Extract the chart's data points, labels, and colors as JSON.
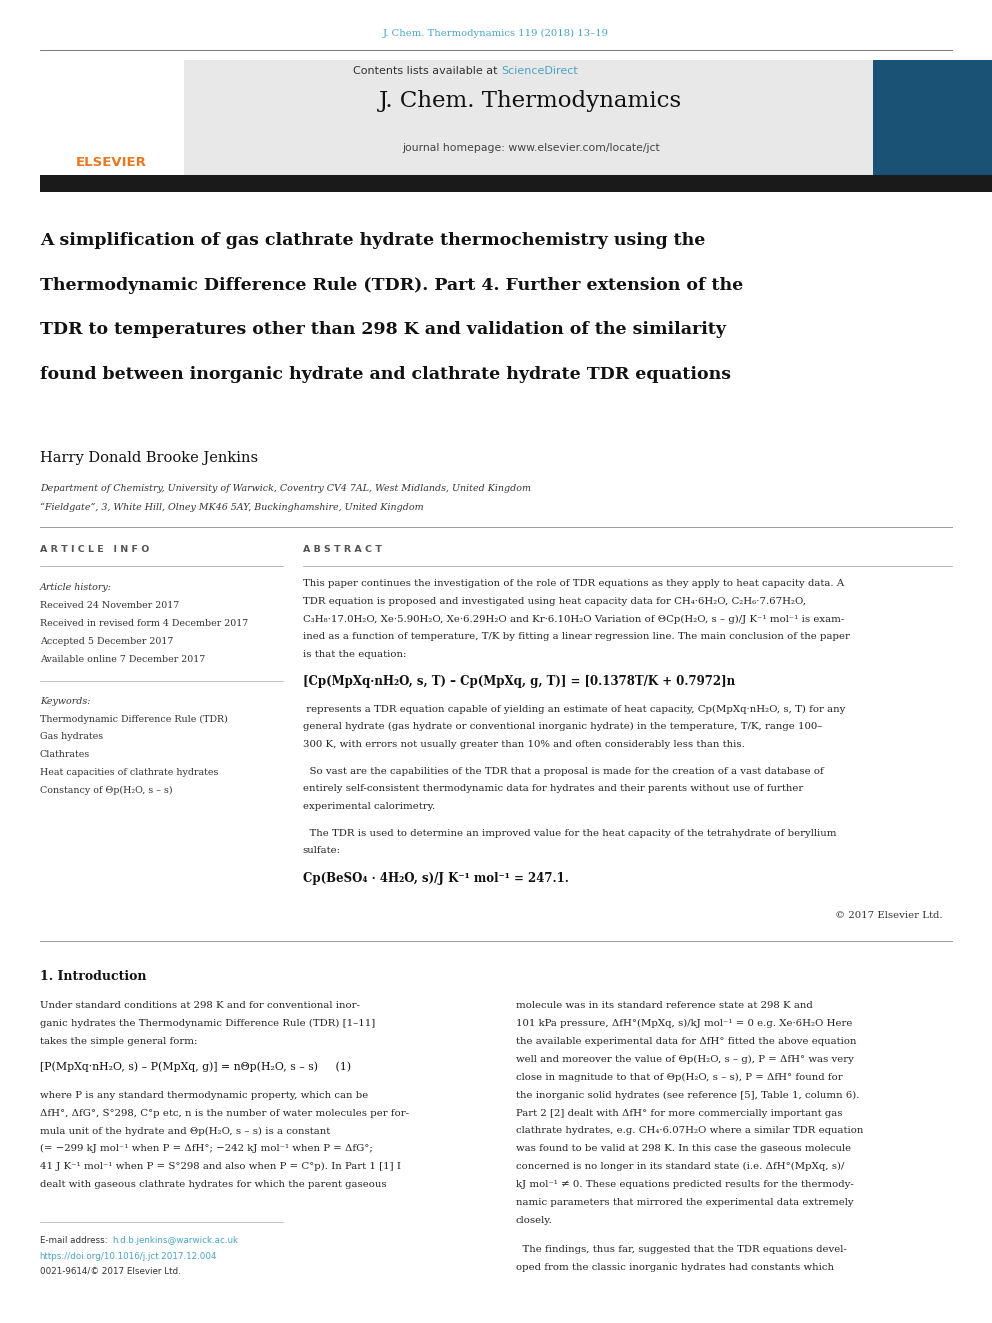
{
  "page_width": 9.92,
  "page_height": 13.23,
  "background_color": "#ffffff",
  "journal_ref": "J. Chem. Thermodynamics 119 (2018) 13–19",
  "journal_ref_color": "#4ba3c3",
  "header_bg": "#e8e8e8",
  "contents_text": "Contents lists available at ",
  "sciencedirect_text": "ScienceDirect",
  "sciencedirect_color": "#4ba3c3",
  "journal_name": "J. Chem. Thermodynamics",
  "journal_homepage": "journal homepage: www.elsevier.com/locate/jct",
  "thick_bar_color": "#1a1a1a",
  "article_title_line1": "A simplification of gas clathrate hydrate thermochemistry using the",
  "article_title_line2": "Thermodynamic Difference Rule (TDR). Part 4. Further extension of the",
  "article_title_line3": "TDR to temperatures other than 298 K and validation of the similarity",
  "article_title_line4": "found between inorganic hydrate and clathrate hydrate TDR equations",
  "author_name": "Harry Donald Brooke Jenkins",
  "affil1": "Department of Chemistry, University of Warwick, Coventry CV4 7AL, West Midlands, United Kingdom",
  "affil2": "“Fieldgate”, 3, White Hill, Olney MK46 5AY, Buckinghamshire, United Kingdom",
  "section_article_info": "A R T I C L E   I N F O",
  "section_abstract": "A B S T R A C T",
  "article_history_label": "Article history:",
  "received1": "Received 24 November 2017",
  "received2": "Received in revised form 4 December 2017",
  "accepted": "Accepted 5 December 2017",
  "available": "Available online 7 December 2017",
  "keywords_label": "Keywords:",
  "keyword1": "Thermodynamic Difference Rule (TDR)",
  "keyword2": "Gas hydrates",
  "keyword3": "Clathrates",
  "keyword4": "Heat capacities of clathrate hydrates",
  "keyword5": "Constancy of Θp(H₂O, s – s)",
  "equation1": "[Cp(MpXq·nH₂O, s, T) – Cp(MpXq, g, T)] = [0.1378T/K + 0.7972]n",
  "equation2": "Cp(BeSO₄ · 4H₂O, s)/J K⁻¹ mol⁻¹ = 247.1.",
  "copyright": "© 2017 Elsevier Ltd.",
  "intro_heading": "1. Introduction",
  "email_label": "E-mail address: ",
  "email_address": "h.d.b.jenkins@warwick.ac.uk",
  "email_color": "#4ba3c3",
  "doi_text": "https://doi.org/10.1016/j.jct.2017.12.004",
  "doi_color": "#4ba3c3",
  "issn_text": "0021-9614/© 2017 Elsevier Ltd.",
  "abs1_lines": [
    "This paper continues the investigation of the role of TDR equations as they apply to heat capacity data. A",
    "TDR equation is proposed and investigated using heat capacity data for CH₄·6H₂O, C₂H₆·7.67H₂O,",
    "C₃H₈·17.0H₂O, Xe·5.90H₂O, Xe·6.29H₂O and Kr·6.10H₂O Variation of ΘCp(H₂O, s – g)/J K⁻¹ mol⁻¹ is exam-",
    "ined as a function of temperature, T/K by fitting a linear regression line. The main conclusion of the paper",
    "is that the equation:"
  ],
  "abs2_lines": [
    " represents a TDR equation capable of yielding an estimate of heat capacity, Cp(MpXq·nH₂O, s, T) for any",
    "general hydrate (gas hydrate or conventional inorganic hydrate) in the temperature, T/K, range 100–",
    "300 K, with errors not usually greater than 10% and often considerably less than this."
  ],
  "abs3_lines": [
    "  So vast are the capabilities of the TDR that a proposal is made for the creation of a vast database of",
    "entirely self-consistent thermodynamic data for hydrates and their parents without use of further",
    "experimental calorimetry."
  ],
  "abs4_lines": [
    "  The TDR is used to determine an improved value for the heat capacity of the tetrahydrate of beryllium",
    "sulfate:"
  ],
  "intro_p1_lines": [
    "Under standard conditions at 298 K and for conventional inor-",
    "ganic hydrates the Thermodynamic Difference Rule (TDR) [1–11]",
    "takes the simple general form:"
  ],
  "intro_eq1": "[P(MpXq·nH₂O, s) – P(MpXq, g)] = nΘp(H₂O, s – s)     (1)",
  "intro_p2_lines": [
    "where P is any standard thermodynamic property, which can be",
    "ΔfH°, ΔfG°, S°298, C°p etc, n is the number of water molecules per for-",
    "mula unit of the hydrate and Θp(H₂O, s – s) is a constant",
    "(= −299 kJ mol⁻¹ when P = ΔfH°; −242 kJ mol⁻¹ when P = ΔfG°;",
    "41 J K⁻¹ mol⁻¹ when P = S°298 and also when P = C°p). In Part 1 [1] I",
    "dealt with gaseous clathrate hydrates for which the parent gaseous"
  ],
  "rc_lines": [
    "molecule was in its standard reference state at 298 K and",
    "101 kPa pressure, ΔfH°(MpXq, s)/kJ mol⁻¹ = 0 e.g. Xe·6H₂O Here",
    "the available experimental data for ΔfH° fitted the above equation",
    "well and moreover the value of Θp(H₂O, s – g), P = ΔfH° was very",
    "close in magnitude to that of Θp(H₂O, s – s), P = ΔfH° found for",
    "the inorganic solid hydrates (see reference [5], Table 1, column 6).",
    "Part 2 [2] dealt with ΔfH° for more commercially important gas",
    "clathrate hydrates, e.g. CH₄·6.07H₂O where a similar TDR equation",
    "was found to be valid at 298 K. In this case the gaseous molecule",
    "concerned is no longer in its standard state (i.e. ΔfH°(MpXq, s)/",
    "kJ mol⁻¹ ≠ 0. These equations predicted results for the thermody-",
    "namic parameters that mirrored the experimental data extremely",
    "closely."
  ],
  "rc2_lines": [
    "  The findings, thus far, suggested that the TDR equations devel-",
    "oped from the classic inorganic hydrates had constants which"
  ]
}
